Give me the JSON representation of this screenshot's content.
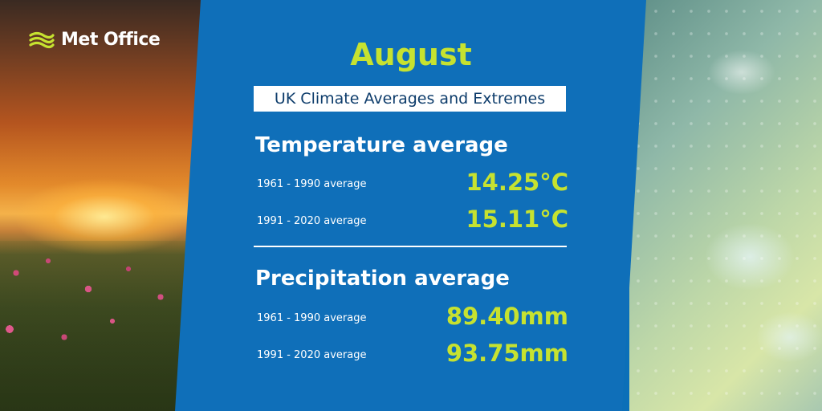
{
  "brand": {
    "name": "Met Office"
  },
  "month": "August",
  "subtitle": "UK Climate Averages and Extremes",
  "temperature": {
    "title": "Temperature average",
    "rows": [
      {
        "label": "1961 - 1990 average",
        "value": "14.25°C"
      },
      {
        "label": "1991 - 2020 average",
        "value": "15.11°C"
      }
    ]
  },
  "precipitation": {
    "title": "Precipitation average",
    "rows": [
      {
        "label": "1961 - 1990 average",
        "value": "89.40mm"
      },
      {
        "label": "1991 - 2020 average",
        "value": "93.75mm"
      }
    ]
  },
  "colors": {
    "panel": "#0f6fb9",
    "accent": "#c6e230",
    "text": "#ffffff",
    "subtitle_text": "#0d3c6b"
  }
}
